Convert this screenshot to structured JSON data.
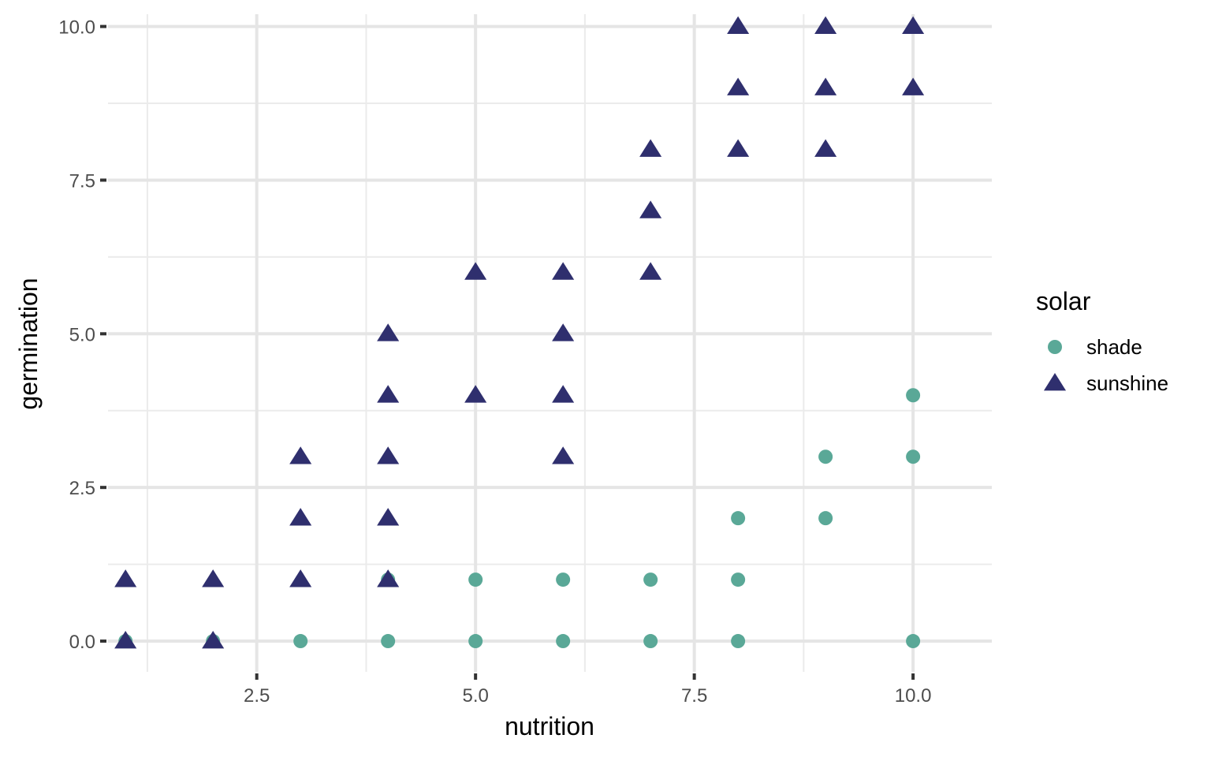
{
  "chart_data": {
    "type": "scatter",
    "title": "",
    "xlabel": "nutrition",
    "ylabel": "germination",
    "xlim": [
      0.8,
      10.9
    ],
    "ylim": [
      -0.5,
      10.2
    ],
    "x_ticks": [
      2.5,
      5.0,
      7.5,
      10.0
    ],
    "x_tick_labels": [
      "2.5",
      "5.0",
      "7.5",
      "10.0"
    ],
    "y_ticks": [
      0.0,
      2.5,
      5.0,
      7.5,
      10.0
    ],
    "y_tick_labels": [
      "0.0",
      "2.5",
      "5.0",
      "7.5",
      "10.0"
    ],
    "x_minor_gridlines": [
      1.25,
      3.75,
      6.25,
      8.75
    ],
    "y_minor_gridlines": [
      1.25,
      3.75,
      6.25,
      8.75
    ],
    "grid": true,
    "background": "#ffffff",
    "legend": {
      "title": "solar",
      "position": "right"
    },
    "series": [
      {
        "name": "shade",
        "shape": "circle",
        "color": "#5aa897",
        "points": [
          [
            1,
            0
          ],
          [
            2,
            0
          ],
          [
            3,
            0
          ],
          [
            4,
            0
          ],
          [
            4,
            1
          ],
          [
            5,
            0
          ],
          [
            5,
            1
          ],
          [
            6,
            0
          ],
          [
            6,
            1
          ],
          [
            7,
            0
          ],
          [
            7,
            1
          ],
          [
            8,
            0
          ],
          [
            8,
            1
          ],
          [
            8,
            2
          ],
          [
            9,
            2
          ],
          [
            9,
            3
          ],
          [
            10,
            0
          ],
          [
            10,
            3
          ],
          [
            10,
            4
          ]
        ]
      },
      {
        "name": "sunshine",
        "shape": "triangle",
        "color": "#2f2f6e",
        "points": [
          [
            1,
            0
          ],
          [
            1,
            1
          ],
          [
            2,
            0
          ],
          [
            2,
            1
          ],
          [
            3,
            1
          ],
          [
            3,
            2
          ],
          [
            3,
            3
          ],
          [
            4,
            1
          ],
          [
            4,
            2
          ],
          [
            4,
            3
          ],
          [
            4,
            4
          ],
          [
            4,
            5
          ],
          [
            5,
            4
          ],
          [
            5,
            6
          ],
          [
            6,
            3
          ],
          [
            6,
            4
          ],
          [
            6,
            5
          ],
          [
            6,
            6
          ],
          [
            7,
            6
          ],
          [
            7,
            7
          ],
          [
            7,
            8
          ],
          [
            8,
            8
          ],
          [
            8,
            9
          ],
          [
            8,
            10
          ],
          [
            9,
            8
          ],
          [
            9,
            9
          ],
          [
            9,
            10
          ],
          [
            10,
            9
          ],
          [
            10,
            10
          ]
        ]
      }
    ]
  }
}
